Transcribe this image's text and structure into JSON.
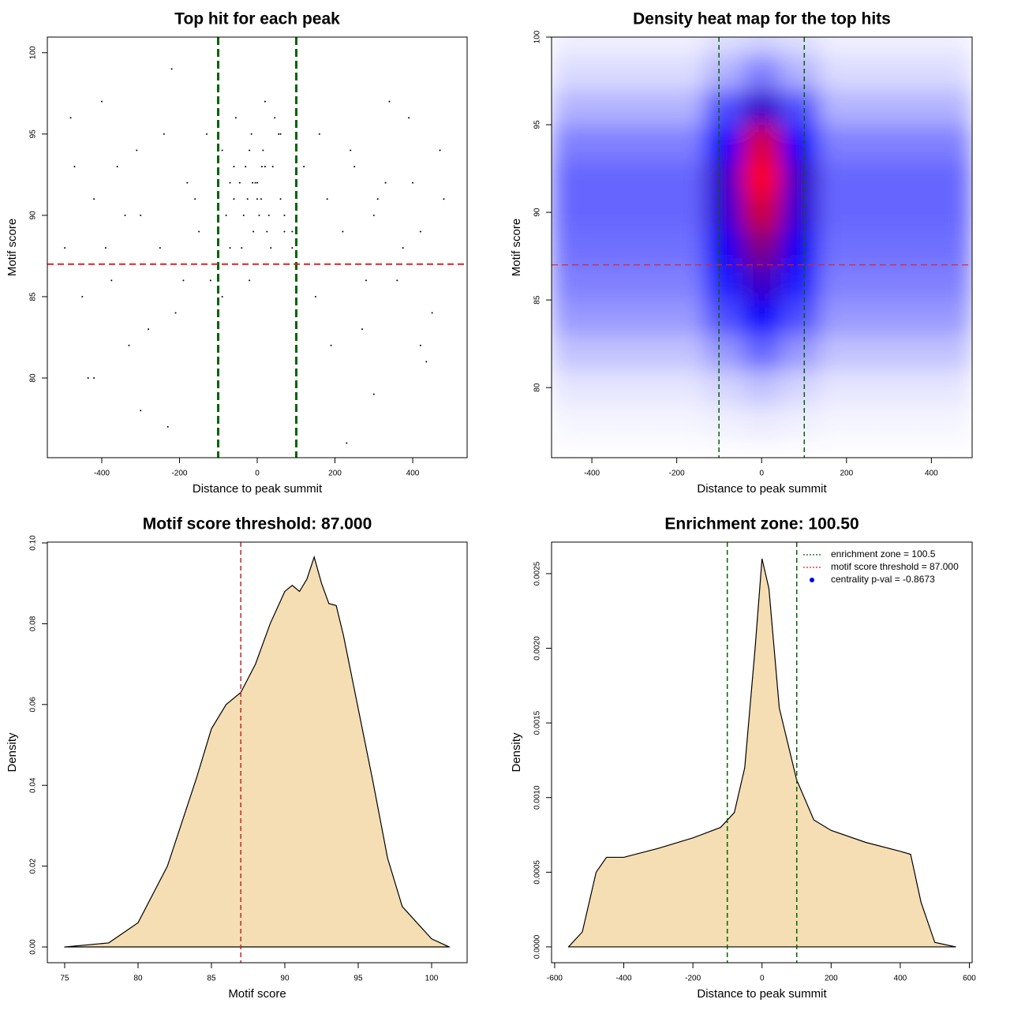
{
  "chart_data": [
    {
      "type": "scatter",
      "title": "Top hit for each peak",
      "x_label": "Distance to peak summit",
      "y_label": "Motif score",
      "xlim": [
        -540,
        540
      ],
      "ylim": [
        75.1,
        100.96
      ],
      "xticks": [
        -400,
        -200,
        0,
        200,
        400
      ],
      "yticks": [
        80,
        85,
        90,
        95,
        100
      ],
      "point_color": "#000000",
      "x": [
        -480,
        -450,
        -420,
        -390,
        -360,
        -330,
        -300,
        -270,
        -240,
        -210,
        -180,
        -150,
        -120,
        -90,
        -60,
        -30,
        0,
        30,
        60,
        90,
        120,
        150,
        180,
        210,
        240,
        270,
        300,
        330,
        360,
        390,
        420,
        450,
        480,
        -495,
        -470,
        -435,
        -400,
        -375,
        -340,
        -310,
        -280,
        -250,
        -220,
        -190,
        -160,
        -130,
        -100,
        -70,
        -45,
        -20,
        -10,
        10,
        20,
        45,
        70,
        100,
        130,
        160,
        190,
        220,
        250,
        280,
        310,
        340,
        375,
        400,
        435,
        470,
        495,
        -80,
        -60,
        -40,
        -25,
        -15,
        -5,
        5,
        15,
        25,
        40,
        60,
        80,
        -55,
        -35,
        -12,
        12,
        35,
        55,
        0,
        -90,
        90,
        -70,
        70,
        -20,
        20,
        -300,
        300,
        -420,
        420,
        -230,
        230
      ],
      "y": [
        96,
        85,
        91,
        88,
        93,
        82,
        90,
        87,
        95,
        84,
        92,
        89,
        86,
        94,
        91,
        93,
        92,
        90,
        95,
        88,
        93,
        85,
        91,
        87,
        94,
        83,
        90,
        92,
        86,
        96,
        89,
        84,
        91,
        88,
        93,
        80,
        97,
        86,
        90,
        94,
        83,
        88,
        99,
        86,
        91,
        95,
        90,
        88,
        92,
        94,
        89,
        91,
        93,
        96,
        89,
        92,
        87,
        95,
        82,
        89,
        93,
        86,
        91,
        97,
        88,
        92,
        81,
        94,
        87,
        90,
        93,
        88,
        91,
        95,
        92,
        90,
        94,
        89,
        93,
        91,
        87,
        96,
        90,
        92,
        93,
        88,
        95,
        91,
        85,
        89,
        92,
        90,
        86,
        97,
        78,
        79,
        80,
        82,
        77,
        76
      ],
      "vlines": [
        -100.5,
        100.5
      ],
      "vline_color": "#006400",
      "hlines": [
        87
      ],
      "hline_color": "#dd2222"
    },
    {
      "type": "heatmap",
      "title": "Density heat map for the top hits",
      "x_label": "Distance to peak summit",
      "y_label": "Motif score",
      "xlim": [
        -495,
        496
      ],
      "ylim": [
        76,
        100
      ],
      "xticks": [
        -400,
        -200,
        0,
        200,
        400
      ],
      "yticks": [
        80,
        85,
        90,
        95,
        100
      ],
      "colors": [
        "#ffffff",
        "#0000ff",
        "#ff0000"
      ],
      "x": [
        -450,
        -360,
        -270,
        -180,
        -90,
        0,
        90,
        180,
        270,
        360,
        450
      ],
      "y": [
        78,
        80,
        82,
        84,
        86,
        88,
        90,
        92,
        94,
        96,
        98,
        100
      ],
      "z": [
        [
          0.02,
          0.02,
          0.02,
          0.02,
          0.03,
          0.04,
          0.03,
          0.02,
          0.02,
          0.02,
          0.02
        ],
        [
          0.05,
          0.05,
          0.05,
          0.05,
          0.08,
          0.12,
          0.08,
          0.05,
          0.05,
          0.05,
          0.05
        ],
        [
          0.12,
          0.12,
          0.12,
          0.12,
          0.2,
          0.3,
          0.2,
          0.12,
          0.12,
          0.12,
          0.12
        ],
        [
          0.2,
          0.2,
          0.2,
          0.2,
          0.35,
          0.5,
          0.35,
          0.2,
          0.2,
          0.2,
          0.2
        ],
        [
          0.25,
          0.25,
          0.25,
          0.25,
          0.45,
          0.62,
          0.45,
          0.25,
          0.25,
          0.25,
          0.25
        ],
        [
          0.28,
          0.28,
          0.28,
          0.28,
          0.52,
          0.75,
          0.52,
          0.28,
          0.28,
          0.28,
          0.28
        ],
        [
          0.3,
          0.3,
          0.3,
          0.3,
          0.58,
          0.9,
          0.58,
          0.3,
          0.3,
          0.3,
          0.3
        ],
        [
          0.3,
          0.3,
          0.3,
          0.3,
          0.6,
          1.0,
          0.6,
          0.3,
          0.3,
          0.3,
          0.3
        ],
        [
          0.25,
          0.25,
          0.25,
          0.25,
          0.5,
          0.92,
          0.5,
          0.25,
          0.25,
          0.25,
          0.25
        ],
        [
          0.15,
          0.15,
          0.15,
          0.15,
          0.35,
          0.6,
          0.35,
          0.15,
          0.15,
          0.15,
          0.15
        ],
        [
          0.07,
          0.07,
          0.07,
          0.07,
          0.15,
          0.25,
          0.15,
          0.07,
          0.07,
          0.07,
          0.07
        ],
        [
          0.03,
          0.03,
          0.03,
          0.03,
          0.06,
          0.08,
          0.06,
          0.03,
          0.03,
          0.03,
          0.03
        ]
      ],
      "vlines": [
        -100.5,
        100.5
      ],
      "vline_color": "#006400",
      "hlines": [
        87
      ],
      "hline_color": "#dd2222"
    },
    {
      "type": "density",
      "title": "Motif score threshold: 87.000",
      "x_label": "Motif score",
      "y_label": "Density",
      "xlim": [
        73.82,
        102.42
      ],
      "ylim": [
        -0.0039,
        0.1002
      ],
      "xticks": [
        75,
        80,
        85,
        90,
        95,
        100
      ],
      "yticks": [
        {
          "value": 0,
          "label": "0.00"
        },
        {
          "value": 0.02,
          "label": "0.02"
        },
        {
          "value": 0.04,
          "label": "0.04"
        },
        {
          "value": 0.06,
          "label": "0.06"
        },
        {
          "value": 0.08,
          "label": "0.08"
        },
        {
          "value": 0.1,
          "label": "0.10"
        }
      ],
      "fill": "#f5deb3",
      "x": [
        75,
        78,
        80,
        82,
        84,
        85,
        86,
        87,
        88,
        89,
        90,
        90.5,
        91,
        91.5,
        92,
        92.5,
        93,
        93.5,
        94,
        95,
        96,
        97,
        98,
        99,
        100,
        101.2
      ],
      "y": [
        0,
        0.001,
        0.006,
        0.02,
        0.042,
        0.054,
        0.06,
        0.063,
        0.07,
        0.08,
        0.088,
        0.0895,
        0.088,
        0.091,
        0.0965,
        0.09,
        0.085,
        0.0845,
        0.077,
        0.059,
        0.041,
        0.022,
        0.01,
        0.006,
        0.002,
        0
      ],
      "vlines": [
        87
      ],
      "vline_color": "#cc2222"
    },
    {
      "type": "density",
      "title": "Enrichment zone: 100.50",
      "x_label": "Distance to peak summit",
      "y_label": "Density",
      "xlim": [
        -609,
        608
      ],
      "ylim": [
        -0.000106,
        0.002711
      ],
      "xticks": [
        -600,
        -400,
        -200,
        0,
        200,
        400,
        600
      ],
      "yticks": [
        {
          "value": 0,
          "label": "0.0000"
        },
        {
          "value": 0.0005,
          "label": "0.0005"
        },
        {
          "value": 0.001,
          "label": "0.0010"
        },
        {
          "value": 0.0015,
          "label": "0.0015"
        },
        {
          "value": 0.002,
          "label": "0.0020"
        },
        {
          "value": 0.0025,
          "label": "0.0025"
        }
      ],
      "fill": "#f5deb3",
      "x": [
        -560,
        -520,
        -480,
        -450,
        -400,
        -300,
        -200,
        -120,
        -80,
        -50,
        -20,
        0,
        20,
        50,
        100,
        150,
        200,
        300,
        400,
        430,
        460,
        500,
        560
      ],
      "y": [
        0,
        0.0001,
        0.0005,
        0.0006,
        0.0006,
        0.00066,
        0.00073,
        0.0008,
        0.0009,
        0.0012,
        0.002,
        0.0026,
        0.0024,
        0.0016,
        0.00112,
        0.00085,
        0.00078,
        0.0007,
        0.00064,
        0.00062,
        0.0003,
        3e-05,
        0
      ],
      "vlines": [
        -100.5,
        100.5
      ],
      "vline_color": "#006400",
      "legend_position": "topright",
      "legend": [
        {
          "name": "enrichment zone = 100.5",
          "color": "#006400",
          "style": "dotted"
        },
        {
          "name": "motif score threshold = 87.000",
          "color": "#dd2222",
          "style": "dotted"
        },
        {
          "name": "centrality p-val = -0.8673",
          "color": "#0000ff",
          "style": "point"
        }
      ]
    }
  ]
}
